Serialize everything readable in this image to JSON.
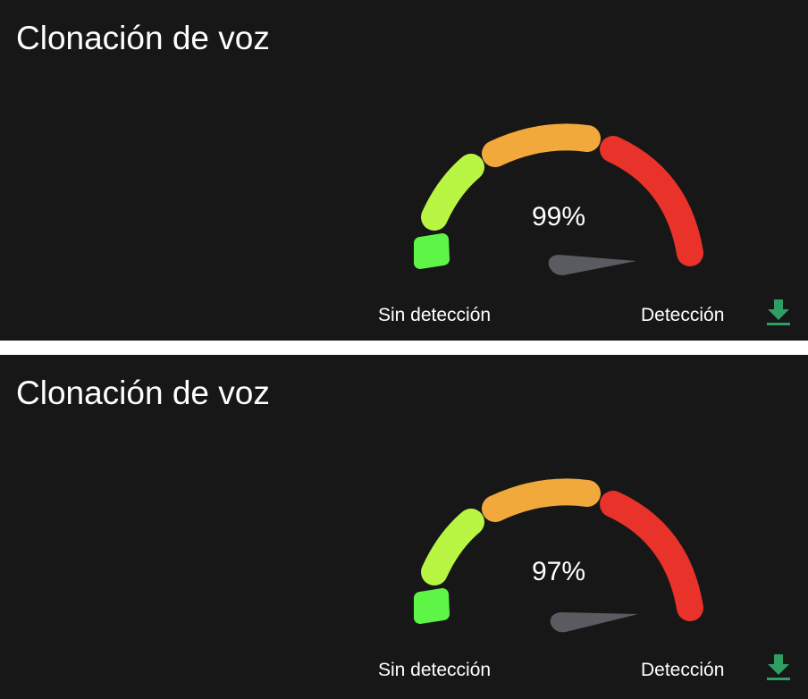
{
  "panels": [
    {
      "title": "Clonación de voz",
      "percent_label": "99%",
      "score": 0.99,
      "left_label": "Sin detección",
      "right_label": "Detección",
      "download_icon": "download-icon"
    },
    {
      "title": "Clonación de voz",
      "percent_label": "97%",
      "score": 0.97,
      "left_label": "Sin detección",
      "right_label": "Detección",
      "download_icon": "download-icon"
    }
  ],
  "colors": {
    "background": "#171717",
    "separator": "#ffffff",
    "segment_1": "#5ef547",
    "segment_2": "#b9f543",
    "segment_3": "#f2a93b",
    "segment_4": "#e8322a",
    "needle": "#5a5b60",
    "download": "#2e9e63"
  }
}
